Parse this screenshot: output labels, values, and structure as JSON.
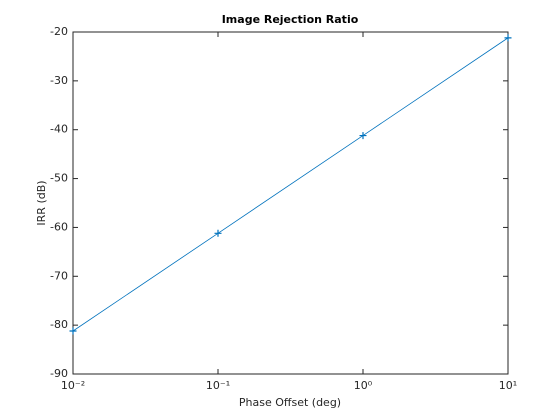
{
  "chart_data": {
    "type": "line",
    "title": "Image Rejection Ratio",
    "x_label": "Phase Offset (deg)",
    "y_label": "IRR (dB)",
    "x": [
      0.01,
      0.1,
      1,
      10
    ],
    "series": [
      {
        "color": "#0072bd",
        "marker": "+",
        "values": [
          -81.2,
          -61.2,
          -41.2,
          -21.2
        ]
      }
    ],
    "xscale": "log",
    "xlim": [
      0.01,
      10
    ],
    "xticks": [
      {
        "value": 0.01,
        "label": "10⁻²"
      },
      {
        "value": 0.1,
        "label": "10⁻¹"
      },
      {
        "value": 1,
        "label": "10⁰"
      },
      {
        "value": 10,
        "label": "10¹"
      }
    ],
    "ylim": [
      -90,
      -20
    ],
    "yticks": [
      -90,
      -80,
      -70,
      -60,
      -50,
      -40,
      -30,
      -20
    ],
    "grid": false
  }
}
